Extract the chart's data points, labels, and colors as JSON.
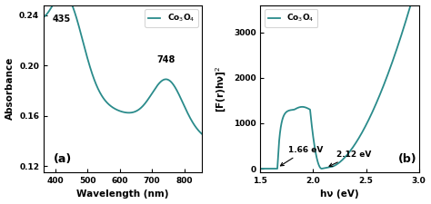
{
  "plot_a": {
    "xlim": [
      365,
      855
    ],
    "ylim": [
      0.115,
      0.248
    ],
    "xlabel": "Wavelength (nm)",
    "ylabel": "Absorbance",
    "label": "(a)",
    "legend": "Co$_3$O$_4$",
    "peak1_x": 435,
    "peak1_y": 0.232,
    "peak2_x": 748,
    "peak2_y": 0.198,
    "line_color": "#2a8b8b",
    "yticks": [
      0.12,
      0.16,
      0.2,
      0.24
    ],
    "xticks": [
      400,
      500,
      600,
      700,
      800
    ]
  },
  "plot_b": {
    "xlim": [
      1.5,
      3.0
    ],
    "ylim": [
      -80,
      3600
    ],
    "xlabel": "hν (eV)",
    "ylabel": "[F(r)hν]$^2$",
    "label": "(b)",
    "legend": "Co$_3$O$_4$",
    "eg1": 1.66,
    "eg2": 2.12,
    "line_color": "#2a8b8b",
    "yticks": [
      0,
      1000,
      2000,
      3000
    ],
    "xticks": [
      1.5,
      2.0,
      2.5,
      3.0
    ]
  },
  "bg_color": "#ffffff"
}
